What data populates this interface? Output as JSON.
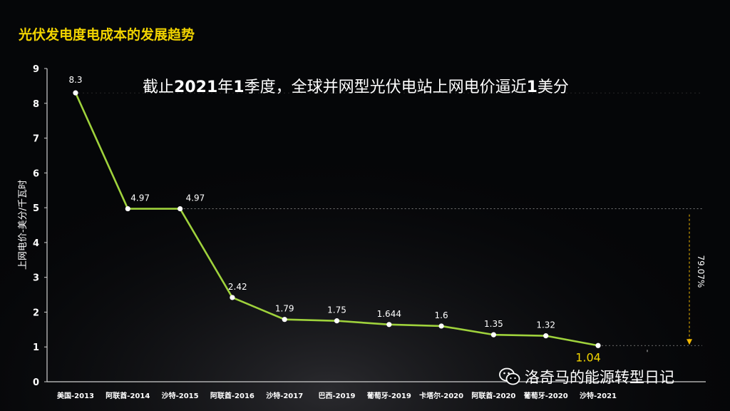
{
  "page": {
    "title": "光伏发电度电成本的发展趋势",
    "subtitle_parts": [
      "截止",
      "2021",
      "年",
      "1",
      "季度，全球并网型光伏电站上网电价逼近",
      "1",
      "美分"
    ],
    "watermark": "洛奇马的能源转型日记",
    "watermark_icon": "wechat-icon"
  },
  "chart_data": {
    "type": "line",
    "title": "光伏发电度电成本的发展趋势",
    "ylabel": "上网电价-美分/千瓦时",
    "xlabel": "",
    "ylim": [
      0,
      9
    ],
    "yticks": [
      0,
      1,
      2,
      3,
      4,
      5,
      6,
      7,
      8,
      9
    ],
    "grid": false,
    "categories": [
      "美国-2013",
      "阿联酋-2014",
      "沙特-2015",
      "阿联酋-2016",
      "沙特-2017",
      "巴西-2019",
      "葡萄牙-2019",
      "卡塔尔-2020",
      "阿联酋-2020",
      "葡萄牙-2020",
      "沙特-2021"
    ],
    "values": [
      8.3,
      4.97,
      4.97,
      2.42,
      1.79,
      1.75,
      1.644,
      1.6,
      1.35,
      1.32,
      1.04
    ],
    "data_labels": [
      "8.3",
      "4.97",
      "4.97",
      "2.42",
      "1.79",
      "1.75",
      "1.644",
      "1.6",
      "1.35",
      "1.32",
      "1.04"
    ],
    "annotation": {
      "text": "79.07%",
      "from_value": 4.97,
      "to_value": 1.04
    },
    "colors": {
      "line": "#9fd23c",
      "point": "#ffffff",
      "highlight_label": "#f2d400",
      "annotation": "#f2b800",
      "axis": "#cfcfcf",
      "text": "#ffffff"
    }
  }
}
